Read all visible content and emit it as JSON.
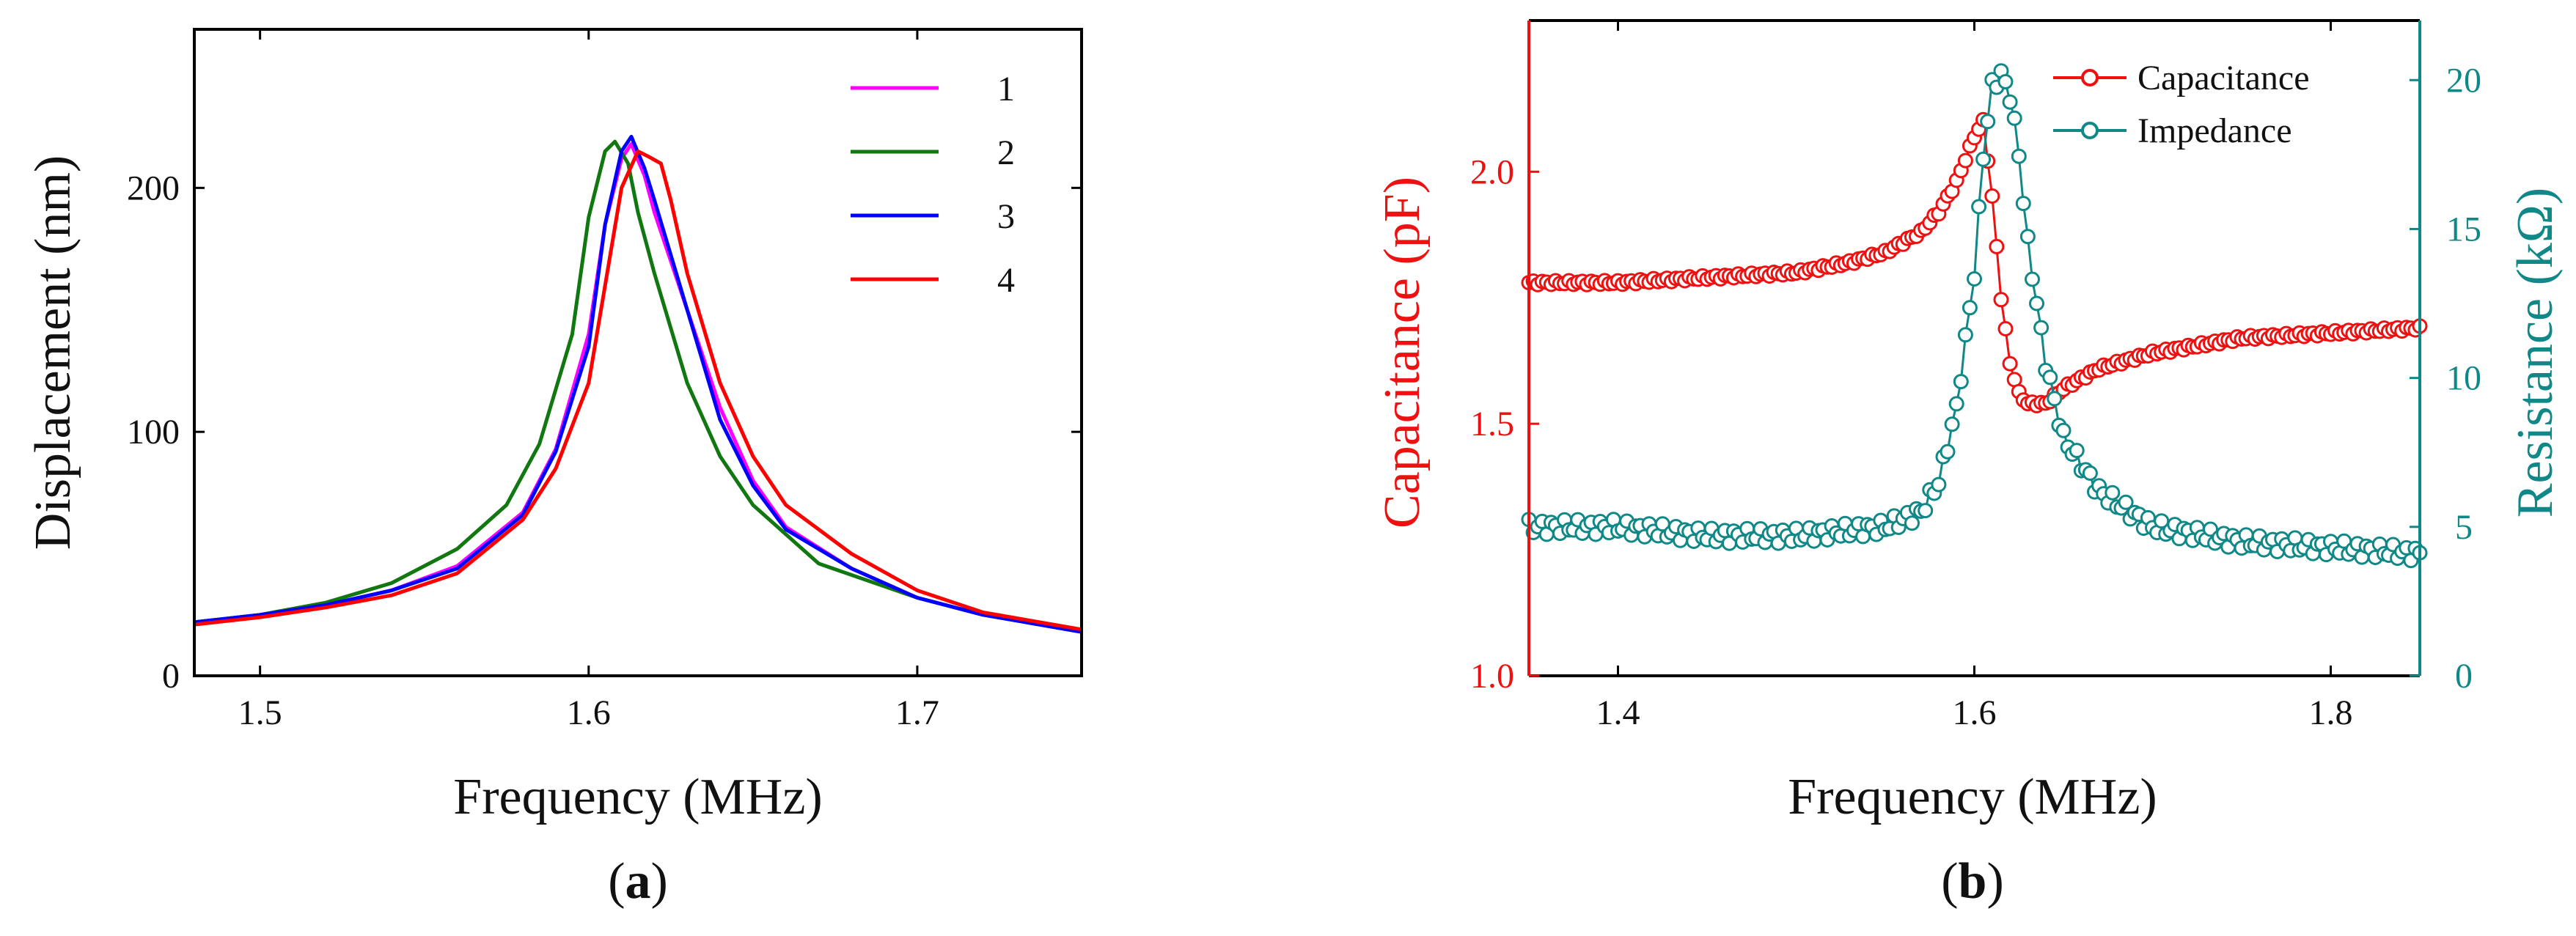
{
  "chart_data": [
    {
      "type": "line",
      "panel": "a",
      "panel_label": {
        "open": "(",
        "letter": "a",
        "close": ")"
      },
      "xlabel": "Frequency (MHz)",
      "ylabel": "Displacement (nm)",
      "xlim": [
        1.48,
        1.75
      ],
      "ylim": [
        0,
        265
      ],
      "xticks": [
        1.5,
        1.6,
        1.7
      ],
      "xtick_labels": [
        "1.5",
        "1.6",
        "1.7"
      ],
      "yticks": [
        0,
        100,
        200
      ],
      "ytick_labels": [
        "0",
        "100",
        "200"
      ],
      "legend_position": "top-right",
      "series": [
        {
          "name": "1",
          "color": "#ff00ff",
          "x": [
            1.48,
            1.5,
            1.52,
            1.54,
            1.56,
            1.58,
            1.59,
            1.6,
            1.605,
            1.61,
            1.613,
            1.617,
            1.62,
            1.63,
            1.64,
            1.65,
            1.66,
            1.68,
            1.7,
            1.72,
            1.75
          ],
          "y": [
            22,
            25,
            29,
            35,
            45,
            67,
            93,
            140,
            185,
            212,
            218,
            205,
            190,
            150,
            110,
            80,
            61,
            44,
            32,
            25,
            18
          ]
        },
        {
          "name": "2",
          "color": "#117711",
          "x": [
            1.48,
            1.5,
            1.52,
            1.54,
            1.56,
            1.575,
            1.585,
            1.595,
            1.6,
            1.605,
            1.608,
            1.612,
            1.615,
            1.62,
            1.63,
            1.64,
            1.65,
            1.67,
            1.7,
            1.72,
            1.75
          ],
          "y": [
            22,
            25,
            30,
            38,
            52,
            70,
            95,
            140,
            188,
            215,
            219,
            210,
            190,
            165,
            120,
            90,
            70,
            46,
            32,
            25,
            18
          ]
        },
        {
          "name": "3",
          "color": "#0000ff",
          "x": [
            1.48,
            1.5,
            1.52,
            1.54,
            1.56,
            1.58,
            1.59,
            1.6,
            1.605,
            1.61,
            1.613,
            1.617,
            1.62,
            1.63,
            1.64,
            1.65,
            1.66,
            1.68,
            1.7,
            1.72,
            1.75
          ],
          "y": [
            22,
            25,
            29,
            35,
            44,
            66,
            92,
            135,
            185,
            215,
            221,
            208,
            195,
            150,
            105,
            78,
            60,
            44,
            32,
            25,
            18
          ]
        },
        {
          "name": "4",
          "color": "#ff0000",
          "x": [
            1.48,
            1.5,
            1.52,
            1.54,
            1.56,
            1.58,
            1.59,
            1.6,
            1.605,
            1.61,
            1.615,
            1.618,
            1.622,
            1.625,
            1.63,
            1.64,
            1.65,
            1.66,
            1.68,
            1.7,
            1.72,
            1.75
          ],
          "y": [
            21,
            24,
            28,
            33,
            42,
            64,
            85,
            120,
            160,
            200,
            215,
            213,
            210,
            195,
            165,
            120,
            90,
            70,
            50,
            35,
            26,
            19
          ]
        }
      ]
    },
    {
      "type": "scatter",
      "panel": "b",
      "panel_label": {
        "open": "(",
        "letter": "b",
        "close": ")"
      },
      "xlabel": "Frequency (MHz)",
      "ylabel_left": "Capacitance (pF)",
      "ylabel_right": "Resistance (kΩ)",
      "xlim": [
        1.35,
        1.85
      ],
      "ylim_left": [
        1.0,
        2.3
      ],
      "ylim_right": [
        0,
        22
      ],
      "xticks": [
        1.4,
        1.6,
        1.8
      ],
      "xtick_labels": [
        "1.4",
        "1.6",
        "1.8"
      ],
      "yticks_left": [
        1.0,
        1.5,
        2.0
      ],
      "ytick_labels_left": [
        "1.0",
        "1.5",
        "2.0"
      ],
      "yticks_right": [
        0,
        5,
        10,
        15,
        20
      ],
      "ytick_labels_right": [
        "0",
        "5",
        "10",
        "15",
        "20"
      ],
      "left_axis_color": "#ee1111",
      "right_axis_color": "#118888",
      "legend_position": "top-right",
      "series": [
        {
          "name": "Capacitance",
          "axis": "left",
          "color": "#ee1111",
          "x": [
            1.35,
            1.4,
            1.45,
            1.5,
            1.53,
            1.55,
            1.57,
            1.58,
            1.59,
            1.6,
            1.605,
            1.61,
            1.615,
            1.62,
            1.625,
            1.63,
            1.64,
            1.65,
            1.67,
            1.7,
            1.75,
            1.8,
            1.85
          ],
          "y": [
            1.78,
            1.78,
            1.79,
            1.8,
            1.82,
            1.84,
            1.88,
            1.92,
            1.98,
            2.07,
            2.1,
            1.95,
            1.75,
            1.62,
            1.56,
            1.54,
            1.54,
            1.57,
            1.61,
            1.64,
            1.67,
            1.68,
            1.69
          ]
        },
        {
          "name": "Impedance",
          "axis": "right",
          "color": "#118888",
          "x": [
            1.35,
            1.4,
            1.45,
            1.5,
            1.55,
            1.57,
            1.58,
            1.59,
            1.6,
            1.605,
            1.61,
            1.615,
            1.62,
            1.625,
            1.63,
            1.64,
            1.65,
            1.67,
            1.7,
            1.75,
            1.8,
            1.85
          ],
          "y": [
            5.0,
            5.0,
            4.7,
            4.7,
            5.0,
            5.5,
            6.5,
            9.0,
            13.5,
            17.5,
            19.8,
            20.2,
            19.5,
            17.5,
            14.5,
            10.5,
            8.0,
            6.2,
            5.0,
            4.5,
            4.3,
            4.1
          ]
        }
      ]
    }
  ]
}
